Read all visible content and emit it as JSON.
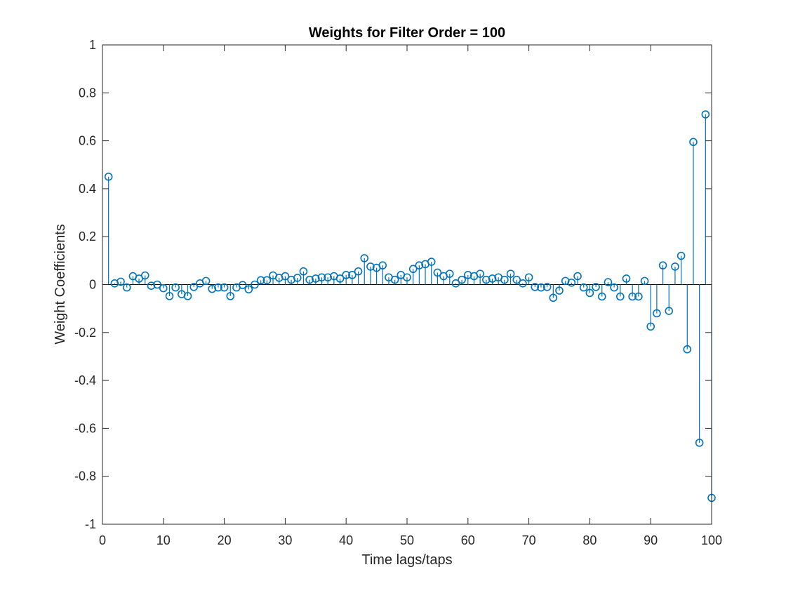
{
  "chart_data": {
    "type": "stem",
    "title": "Weights for Filter Order = 100",
    "xlabel": "Time lags/taps",
    "ylabel": "Weight Coefficients",
    "xlim": [
      0,
      100
    ],
    "ylim": [
      -1,
      1
    ],
    "xticks": [
      0,
      10,
      20,
      30,
      40,
      50,
      60,
      70,
      80,
      90,
      100
    ],
    "yticks": [
      -1,
      -0.8,
      -0.6,
      -0.4,
      -0.2,
      0,
      0.2,
      0.4,
      0.6,
      0.8,
      1
    ],
    "yticklabels": [
      "-1",
      "-0.8",
      "-0.6",
      "-0.4",
      "-0.2",
      "0",
      "0.2",
      "0.4",
      "0.6",
      "0.8",
      "1"
    ],
    "grid": false,
    "box": true,
    "color": "#0072BD",
    "x": [
      1,
      2,
      3,
      4,
      5,
      6,
      7,
      8,
      9,
      10,
      11,
      12,
      13,
      14,
      15,
      16,
      17,
      18,
      19,
      20,
      21,
      22,
      23,
      24,
      25,
      26,
      27,
      28,
      29,
      30,
      31,
      32,
      33,
      34,
      35,
      36,
      37,
      38,
      39,
      40,
      41,
      42,
      43,
      44,
      45,
      46,
      47,
      48,
      49,
      50,
      51,
      52,
      53,
      54,
      55,
      56,
      57,
      58,
      59,
      60,
      61,
      62,
      63,
      64,
      65,
      66,
      67,
      68,
      69,
      70,
      71,
      72,
      73,
      74,
      75,
      76,
      77,
      78,
      79,
      80,
      81,
      82,
      83,
      84,
      85,
      86,
      87,
      88,
      89,
      90,
      91,
      92,
      93,
      94,
      95,
      96,
      97,
      98,
      99,
      100
    ],
    "y": [
      0.45,
      0.005,
      0.012,
      -0.012,
      0.035,
      0.025,
      0.038,
      -0.005,
      0.0,
      -0.015,
      -0.048,
      -0.012,
      -0.04,
      -0.048,
      -0.01,
      0.005,
      0.015,
      -0.018,
      -0.012,
      -0.012,
      -0.048,
      -0.012,
      -0.002,
      -0.02,
      0.0,
      0.018,
      0.018,
      0.038,
      0.028,
      0.035,
      0.02,
      0.028,
      0.055,
      0.02,
      0.025,
      0.03,
      0.03,
      0.035,
      0.025,
      0.04,
      0.04,
      0.055,
      0.11,
      0.075,
      0.07,
      0.08,
      0.03,
      0.02,
      0.04,
      0.03,
      0.065,
      0.08,
      0.085,
      0.095,
      0.05,
      0.035,
      0.045,
      0.005,
      0.02,
      0.04,
      0.035,
      0.045,
      0.02,
      0.025,
      0.03,
      0.02,
      0.045,
      0.02,
      0.005,
      0.03,
      -0.01,
      -0.012,
      -0.01,
      -0.055,
      -0.025,
      0.015,
      0.008,
      0.035,
      -0.012,
      -0.035,
      -0.01,
      -0.05,
      0.01,
      -0.012,
      -0.05,
      0.025,
      -0.05,
      -0.05,
      0.015,
      -0.175,
      -0.12,
      0.08,
      -0.11,
      0.075,
      0.12,
      -0.27,
      0.595,
      -0.66,
      0.71,
      -0.89
    ]
  }
}
